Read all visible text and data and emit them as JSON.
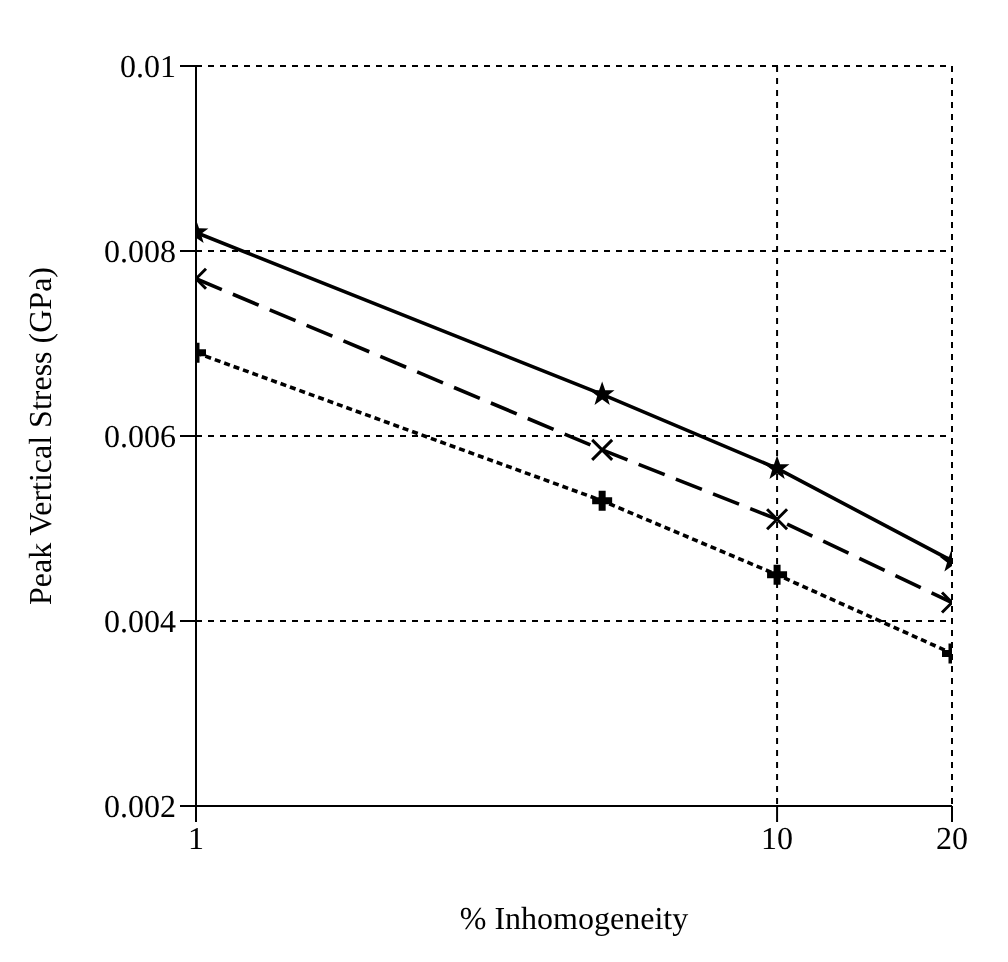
{
  "chart_data": {
    "type": "line",
    "xlabel": "% Inhomogeneity",
    "ylabel": "Peak Vertical Stress (GPa)",
    "log": "x",
    "grid": true,
    "legend": false,
    "xlim": [
      1,
      20
    ],
    "xticks": [
      1,
      10,
      20
    ],
    "ylim": [
      0.002,
      0.01
    ],
    "yticks": [
      0.002,
      0.004,
      0.006,
      0.008,
      0.01
    ],
    "x": [
      1,
      5,
      10,
      20
    ],
    "series": [
      {
        "color": "#000000",
        "line_style": "solid",
        "marker": "star",
        "values": [
          0.0082,
          0.00645,
          0.00565,
          0.00465
        ]
      },
      {
        "color": "#000000",
        "line_style": "dashed",
        "marker": "cross",
        "values": [
          0.0077,
          0.00585,
          0.0051,
          0.0042
        ]
      },
      {
        "color": "#000000",
        "line_style": "dotted",
        "marker": "plus",
        "values": [
          0.0069,
          0.0053,
          0.0045,
          0.00365
        ]
      }
    ]
  }
}
